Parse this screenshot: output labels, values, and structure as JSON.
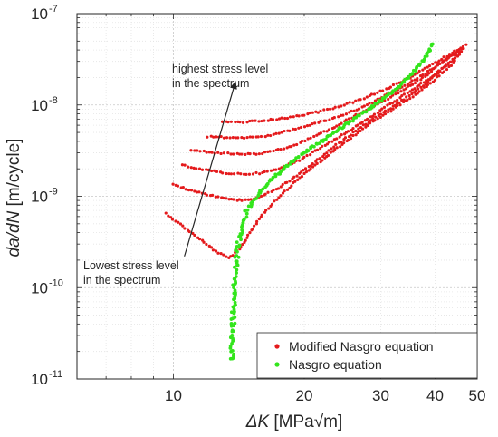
{
  "chart_data": {
    "type": "scatter",
    "title": "",
    "x_scale": "log",
    "y_scale": "log",
    "xlim": [
      6,
      50
    ],
    "ylim": [
      1e-11,
      1e-07
    ],
    "grid": "on (major and minor, dotted)",
    "xlabel": {
      "italic": "ΔK",
      "rest": " [MPa√m]"
    },
    "ylabel": {
      "italic": "da/dN",
      "rest": " [m/cycle]"
    },
    "x_ticks": [
      {
        "value": 10,
        "label": "10"
      },
      {
        "value": 20,
        "label": "20"
      },
      {
        "value": 30,
        "label": "30"
      },
      {
        "value": 40,
        "label": "40"
      },
      {
        "value": 50,
        "label": "50"
      }
    ],
    "y_ticks": [
      {
        "value": 1e-11,
        "base": "10",
        "exp": "-11"
      },
      {
        "value": 1e-10,
        "base": "10",
        "exp": "-10"
      },
      {
        "value": 1e-09,
        "base": "10",
        "exp": "-9"
      },
      {
        "value": 1e-08,
        "base": "10",
        "exp": "-8"
      },
      {
        "value": 1e-07,
        "base": "10",
        "exp": "-7"
      }
    ],
    "legend": {
      "placement": "bottom-right",
      "entries": [
        {
          "label": "Modified Nasgro equation",
          "color": "#e41a1c"
        },
        {
          "label": "Nasgro equation",
          "color": "#33e51c"
        }
      ]
    },
    "annotations": {
      "arrow_start": {
        "x": 10.6,
        "y": 2.2e-10
      },
      "arrow_end": {
        "x": 13.9,
        "y": 1.8e-08
      },
      "high_label": [
        "highest stress level",
        "in the spectrum"
      ],
      "low_label": [
        "Lowest stress level",
        "in the spectrum"
      ]
    },
    "series": [
      {
        "name": "Modified Nasgro equation",
        "color": "#e41a1c",
        "curves": [
          [
            [
              9.6,
              6.5e-10
            ],
            [
              10.5,
              4.7e-10
            ],
            [
              11.5,
              3.4e-10
            ],
            [
              12.5,
              2.5e-10
            ],
            [
              13.4,
              2.1e-10
            ],
            [
              14.2,
              2.6e-10
            ],
            [
              15.0,
              4e-10
            ],
            [
              16.0,
              6.3e-10
            ],
            [
              17.5,
              9.8e-10
            ],
            [
              19.5,
              1.6e-09
            ],
            [
              22.0,
              2.5e-09
            ],
            [
              25.0,
              4e-09
            ],
            [
              28.0,
              6e-09
            ],
            [
              32.0,
              9e-09
            ],
            [
              36.0,
              1.3e-08
            ],
            [
              40.0,
              1.9e-08
            ],
            [
              43.0,
              2.6e-08
            ],
            [
              44.5,
              3e-08
            ]
          ],
          [
            [
              10.0,
              1.35e-09
            ],
            [
              11.0,
              1.15e-09
            ],
            [
              12.5,
              1e-09
            ],
            [
              14.0,
              9e-10
            ],
            [
              15.5,
              9.5e-10
            ],
            [
              17.0,
              1.15e-09
            ],
            [
              19.0,
              1.6e-09
            ],
            [
              21.5,
              2.5e-09
            ],
            [
              24.0,
              3.8e-09
            ],
            [
              27.0,
              5.7e-09
            ],
            [
              30.0,
              8e-09
            ],
            [
              34.0,
              1.15e-08
            ],
            [
              38.0,
              1.7e-08
            ],
            [
              42.0,
              2.6e-08
            ],
            [
              45.5,
              3.5e-08
            ]
          ],
          [
            [
              10.5,
              2.2e-09
            ],
            [
              11.5,
              2e-09
            ],
            [
              13.0,
              1.8e-09
            ],
            [
              14.5,
              1.75e-09
            ],
            [
              16.0,
              1.8e-09
            ],
            [
              17.5,
              2e-09
            ],
            [
              19.5,
              2.5e-09
            ],
            [
              22.0,
              3.5e-09
            ],
            [
              25.0,
              5e-09
            ],
            [
              28.0,
              7e-09
            ],
            [
              31.0,
              9.8e-09
            ],
            [
              35.0,
              1.4e-08
            ],
            [
              39.0,
              2e-08
            ],
            [
              43.0,
              2.8e-08
            ],
            [
              46.5,
              4.1e-08
            ]
          ],
          [
            [
              11.0,
              3.2e-09
            ],
            [
              12.5,
              3e-09
            ],
            [
              14.0,
              2.9e-09
            ],
            [
              15.5,
              2.9e-09
            ],
            [
              17.0,
              3.1e-09
            ],
            [
              19.0,
              3.6e-09
            ],
            [
              21.0,
              4.5e-09
            ],
            [
              23.5,
              5.7e-09
            ],
            [
              26.0,
              7.5e-09
            ],
            [
              29.0,
              9.8e-09
            ],
            [
              33.0,
              1.35e-08
            ],
            [
              37.0,
              1.9e-08
            ],
            [
              41.0,
              2.8e-08
            ],
            [
              45.0,
              3.9e-08
            ],
            [
              47.0,
              4.6e-08
            ]
          ],
          [
            [
              12.0,
              4.5e-09
            ],
            [
              13.5,
              4.4e-09
            ],
            [
              15.0,
              4.4e-09
            ],
            [
              16.5,
              4.6e-09
            ],
            [
              18.0,
              5.1e-09
            ],
            [
              20.0,
              5.8e-09
            ],
            [
              22.5,
              6.8e-09
            ],
            [
              25.0,
              8e-09
            ],
            [
              28.0,
              1e-08
            ],
            [
              31.0,
              1.3e-08
            ],
            [
              35.0,
              1.75e-08
            ],
            [
              39.0,
              2.4e-08
            ],
            [
              43.0,
              3.3e-08
            ],
            [
              46.0,
              4.1e-08
            ]
          ],
          [
            [
              13.0,
              6.5e-09
            ],
            [
              14.5,
              6.5e-09
            ],
            [
              16.0,
              6.7e-09
            ],
            [
              17.5,
              7e-09
            ],
            [
              19.5,
              7.6e-09
            ],
            [
              21.5,
              8.4e-09
            ],
            [
              24.0,
              9.6e-09
            ],
            [
              27.0,
              1.15e-08
            ],
            [
              30.0,
              1.4e-08
            ],
            [
              34.0,
              1.85e-08
            ],
            [
              38.0,
              2.5e-08
            ],
            [
              42.0,
              3.3e-08
            ],
            [
              45.0,
              4e-08
            ]
          ]
        ]
      },
      {
        "name": "Nasgro equation",
        "color": "#33e51c",
        "points": [
          [
            13.6,
            1.6e-11
          ],
          [
            13.65,
            2.5e-11
          ],
          [
            13.7,
            3.5e-11
          ],
          [
            13.72,
            5e-11
          ],
          [
            13.75,
            6.5e-11
          ],
          [
            13.78,
            8e-11
          ],
          [
            13.8,
            1e-10
          ],
          [
            13.85,
            1.3e-10
          ],
          [
            13.9,
            1.7e-10
          ],
          [
            14.0,
            2.2e-10
          ],
          [
            14.1,
            3e-10
          ],
          [
            14.25,
            4e-10
          ],
          [
            14.45,
            5.2e-10
          ],
          [
            14.75,
            6.6e-10
          ],
          [
            15.1,
            8.2e-10
          ],
          [
            15.6,
            1e-09
          ],
          [
            16.2,
            1.25e-09
          ],
          [
            17.0,
            1.6e-09
          ],
          [
            18.0,
            2e-09
          ],
          [
            19.2,
            2.6e-09
          ],
          [
            20.6,
            3.3e-09
          ],
          [
            22.2,
            4.2e-09
          ],
          [
            24.0,
            5.4e-09
          ],
          [
            26.0,
            7e-09
          ],
          [
            28.5,
            9.3e-09
          ],
          [
            31.0,
            1.25e-08
          ],
          [
            33.5,
            1.7e-08
          ],
          [
            36.0,
            2.4e-08
          ],
          [
            38.0,
            3.3e-08
          ],
          [
            39.5,
            4.7e-08
          ]
        ]
      }
    ]
  }
}
